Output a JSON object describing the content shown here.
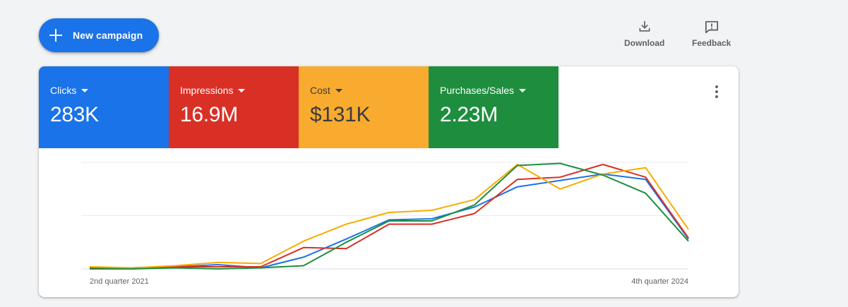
{
  "toolbar": {
    "new_campaign_label": "New campaign",
    "download_label": "Download",
    "feedback_label": "Feedback"
  },
  "metrics": [
    {
      "name": "Clicks",
      "value": "283K",
      "color": "#1a73e8"
    },
    {
      "name": "Impressions",
      "value": "16.9M",
      "color": "#d93025"
    },
    {
      "name": "Cost",
      "value": "$131K",
      "color": "#f9ab00"
    },
    {
      "name": "Purchases/Sales",
      "value": "2.23M",
      "color": "#1e8e3e"
    }
  ],
  "chart_data": {
    "type": "line",
    "x_labels": [
      "2nd quarter 2021",
      "4th quarter 2024"
    ],
    "x": [
      "Q2 2021",
      "Q3 2021",
      "Q4 2021",
      "Q1 2022",
      "Q2 2022",
      "Q3 2022",
      "Q4 2022",
      "Q1 2023",
      "Q2 2023",
      "Q3 2023",
      "Q4 2023",
      "Q1 2024",
      "Q2 2024",
      "Q3 2024",
      "Q4 2024"
    ],
    "ylim": [
      0,
      100
    ],
    "grid": true,
    "series": [
      {
        "metric": "Clicks",
        "color": "#1a73e8",
        "values": [
          1,
          1,
          2,
          4,
          1,
          11,
          28,
          46,
          47,
          58,
          77,
          83,
          89,
          84,
          28
        ]
      },
      {
        "metric": "Impressions",
        "color": "#d93025",
        "values": [
          1,
          1,
          2,
          2,
          2,
          20,
          19,
          42,
          42,
          52,
          84,
          86,
          98,
          86,
          29
        ]
      },
      {
        "metric": "Cost",
        "color": "#f9ab00",
        "values": [
          2,
          1,
          3,
          6,
          5,
          26,
          42,
          53,
          55,
          65,
          98,
          75,
          89,
          95,
          37
        ]
      },
      {
        "metric": "Purchases/Sales",
        "color": "#1e8e3e",
        "values": [
          0,
          0,
          1,
          0,
          1,
          3,
          25,
          45,
          45,
          60,
          97,
          99,
          88,
          71,
          26
        ]
      }
    ]
  }
}
